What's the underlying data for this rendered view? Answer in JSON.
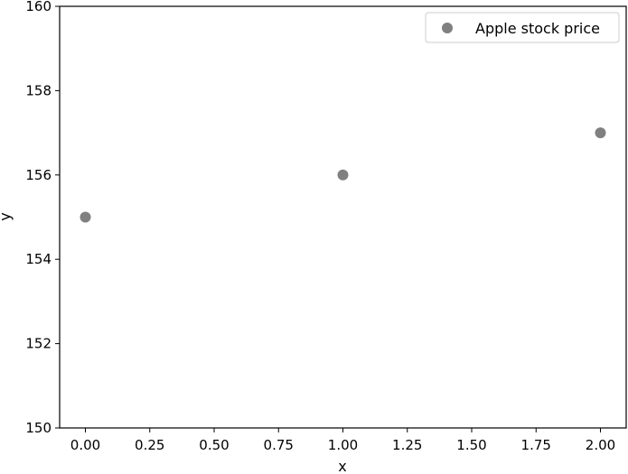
{
  "chart_data": {
    "type": "scatter",
    "title": "",
    "xlabel": "x",
    "ylabel": "y",
    "xlim": [
      -0.1,
      2.1
    ],
    "ylim": [
      150,
      160
    ],
    "x_ticks": [
      "0.00",
      "0.25",
      "0.50",
      "0.75",
      "1.00",
      "1.25",
      "1.50",
      "1.75",
      "2.00"
    ],
    "y_ticks": [
      "150",
      "152",
      "154",
      "156",
      "158",
      "160"
    ],
    "grid": false,
    "legend_position": "top-right",
    "series": [
      {
        "name": "Apple stock price",
        "color": "#808080",
        "points": [
          {
            "x": 0,
            "y": 155
          },
          {
            "x": 1,
            "y": 156
          },
          {
            "x": 2,
            "y": 157
          }
        ]
      }
    ]
  }
}
